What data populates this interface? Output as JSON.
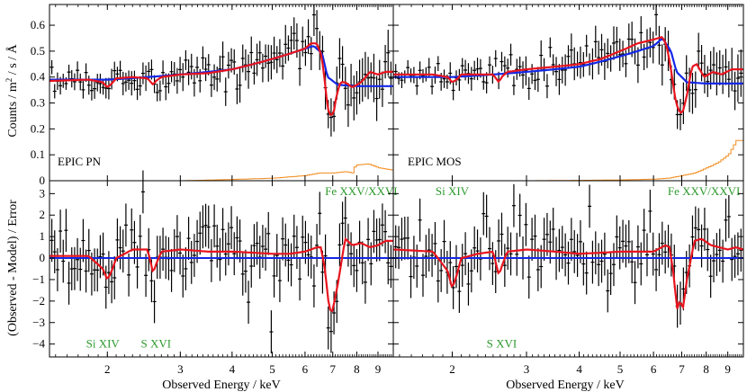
{
  "colors": {
    "data": "#000000",
    "absorption_model": "#e8141e",
    "continuum_model": "#1428e6",
    "background": "#f28c1e",
    "line_label": "#2e9a2e"
  },
  "chart_data": {
    "type": "scatter",
    "x_scale": "log",
    "xlabel": "Observed Energy / keV",
    "xlim": [
      1.45,
      9.8
    ],
    "x_ticks": [
      2,
      3,
      4,
      5,
      6,
      7,
      8,
      9
    ],
    "x_tick_labels": [
      "2",
      "3",
      "4",
      "5",
      "6",
      "7",
      "8",
      "9"
    ],
    "top_ylabel": "Counts / m² / s / Å",
    "top_ylabel_parts": {
      "pre": "Counts / m",
      "sup": "2",
      "post": " / s / Å"
    },
    "top_ylim": [
      0,
      0.68
    ],
    "top_y_ticks": [
      0,
      0.1,
      0.2,
      0.3,
      0.4,
      0.5,
      0.6
    ],
    "top_y_tick_labels": [
      "0",
      "0.1",
      "0.2",
      "0.3",
      "0.4",
      "0.5",
      "0.6"
    ],
    "bottom_ylabel": "(Observed - Model) / Error",
    "bottom_ylim": [
      -4.6,
      3.6
    ],
    "bottom_y_ticks": [
      -4,
      -3,
      -2,
      -1,
      0,
      1,
      2,
      3
    ],
    "bottom_y_tick_labels": [
      "−4",
      "−3",
      "−2",
      "−1",
      "0",
      "1",
      "2",
      "3"
    ],
    "panels": [
      {
        "id": "pn",
        "label": "EPIC PN",
        "continuum": {
          "x": [
            1.45,
            2.0,
            3.0,
            4.0,
            5.0,
            6.0,
            6.3,
            6.6,
            6.8,
            7.2,
            8.0,
            9.0,
            9.8
          ],
          "y": [
            0.39,
            0.39,
            0.41,
            0.43,
            0.47,
            0.51,
            0.52,
            0.49,
            0.4,
            0.37,
            0.365,
            0.365,
            0.365
          ]
        },
        "absorption_model": {
          "x": [
            1.45,
            1.8,
            1.95,
            2.0,
            2.05,
            2.1,
            2.3,
            2.5,
            2.58,
            2.62,
            2.7,
            3.0,
            3.5,
            4.0,
            4.5,
            5.0,
            5.5,
            6.0,
            6.2,
            6.4,
            6.55,
            6.65,
            6.75,
            6.85,
            6.95,
            7.05,
            7.15,
            7.3,
            7.5,
            7.8,
            8.2,
            8.6,
            9.0,
            9.4,
            9.8
          ],
          "y": [
            0.385,
            0.39,
            0.38,
            0.36,
            0.375,
            0.395,
            0.4,
            0.395,
            0.37,
            0.385,
            0.4,
            0.41,
            0.415,
            0.43,
            0.45,
            0.47,
            0.49,
            0.51,
            0.53,
            0.53,
            0.49,
            0.43,
            0.33,
            0.26,
            0.25,
            0.27,
            0.33,
            0.38,
            0.38,
            0.36,
            0.38,
            0.42,
            0.41,
            0.42,
            0.42
          ]
        },
        "background": {
          "x": [
            1.45,
            3.0,
            4.0,
            5.0,
            5.5,
            6.0,
            6.5,
            7.0,
            7.5,
            7.8,
            7.9,
            8.5,
            9.0,
            9.8
          ],
          "y": [
            0.0,
            0.0,
            0.005,
            0.01,
            0.015,
            0.02,
            0.03,
            0.03,
            0.035,
            0.03,
            0.06,
            0.065,
            0.05,
            0.04
          ]
        },
        "residual_model": {
          "x": [
            1.45,
            1.8,
            1.95,
            2.0,
            2.05,
            2.1,
            2.3,
            2.5,
            2.58,
            2.62,
            2.7,
            3.0,
            3.5,
            4.0,
            4.5,
            5.0,
            5.5,
            6.0,
            6.4,
            6.55,
            6.7,
            6.85,
            6.95,
            7.05,
            7.2,
            7.5,
            7.8,
            8.2,
            8.6,
            9.0,
            9.4,
            9.8
          ],
          "y": [
            0.1,
            0.1,
            -0.5,
            -1.0,
            -0.6,
            0.0,
            0.4,
            0.4,
            -0.7,
            -0.3,
            0.3,
            0.4,
            0.3,
            0.3,
            0.25,
            0.2,
            0.2,
            0.3,
            0.5,
            0.5,
            -0.5,
            -2.2,
            -2.6,
            -2.1,
            -1.2,
            0.9,
            0.6,
            0.7,
            0.5,
            0.6,
            0.8,
            0.8
          ]
        },
        "line_labels": [
          {
            "text": "Si XIV",
            "x": 1.95,
            "y": -4.0
          },
          {
            "text": "S XVI",
            "x": 2.62,
            "y": -4.0
          },
          {
            "text": "Fe XXV/XXVI",
            "x": 8.2,
            "y": 3.1
          }
        ]
      },
      {
        "id": "mos",
        "label": "EPIC MOS",
        "continuum": {
          "x": [
            1.45,
            2.0,
            3.0,
            4.0,
            5.0,
            6.0,
            6.3,
            6.6,
            6.8,
            7.2,
            8.0,
            9.0,
            9.8
          ],
          "y": [
            0.4,
            0.4,
            0.42,
            0.44,
            0.48,
            0.52,
            0.55,
            0.5,
            0.42,
            0.38,
            0.375,
            0.375,
            0.375
          ]
        },
        "absorption_model": {
          "x": [
            1.45,
            1.8,
            1.95,
            2.0,
            2.05,
            2.1,
            2.3,
            2.5,
            2.58,
            2.62,
            2.7,
            3.0,
            3.5,
            4.0,
            4.5,
            5.0,
            5.5,
            6.0,
            6.3,
            6.45,
            6.6,
            6.75,
            6.85,
            6.95,
            7.05,
            7.2,
            7.4,
            7.6,
            7.9,
            8.3,
            8.7,
            9.2,
            9.8
          ],
          "y": [
            0.41,
            0.41,
            0.4,
            0.38,
            0.39,
            0.41,
            0.41,
            0.41,
            0.38,
            0.4,
            0.42,
            0.43,
            0.44,
            0.45,
            0.47,
            0.5,
            0.53,
            0.545,
            0.555,
            0.52,
            0.43,
            0.32,
            0.28,
            0.26,
            0.27,
            0.33,
            0.44,
            0.45,
            0.4,
            0.42,
            0.41,
            0.43,
            0.43
          ]
        },
        "background": {
          "x": [
            1.45,
            3.0,
            5.0,
            6.0,
            6.5,
            7.0,
            7.5,
            8.0,
            8.5,
            9.0,
            9.4,
            9.8
          ],
          "y": [
            0.0,
            0.0,
            0.003,
            0.006,
            0.01,
            0.02,
            0.03,
            0.05,
            0.07,
            0.1,
            0.155,
            0.155
          ]
        },
        "residual_model": {
          "x": [
            1.45,
            1.8,
            1.95,
            2.0,
            2.05,
            2.1,
            2.3,
            2.5,
            2.58,
            2.62,
            2.7,
            3.0,
            3.5,
            4.0,
            4.5,
            5.0,
            5.5,
            6.0,
            6.4,
            6.55,
            6.7,
            6.82,
            6.92,
            7.05,
            7.2,
            7.5,
            7.8,
            8.2,
            8.6,
            9.0,
            9.4,
            9.8
          ],
          "y": [
            0.4,
            0.3,
            -0.6,
            -1.4,
            -0.8,
            0.0,
            0.2,
            0.3,
            -0.8,
            -0.4,
            0.3,
            0.4,
            0.3,
            0.2,
            0.25,
            0.3,
            0.3,
            0.3,
            0.6,
            0.5,
            -0.8,
            -2.4,
            -2.0,
            -2.3,
            -1.0,
            0.8,
            0.9,
            0.6,
            0.5,
            0.4,
            0.5,
            0.4
          ]
        },
        "line_labels": [
          {
            "text": "Si XIV",
            "x": 2.0,
            "y": 3.1
          },
          {
            "text": "S XVI",
            "x": 2.62,
            "y": -4.0
          },
          {
            "text": "Fe XXV/XXVI",
            "x": 7.9,
            "y": 3.1
          }
        ]
      }
    ]
  }
}
